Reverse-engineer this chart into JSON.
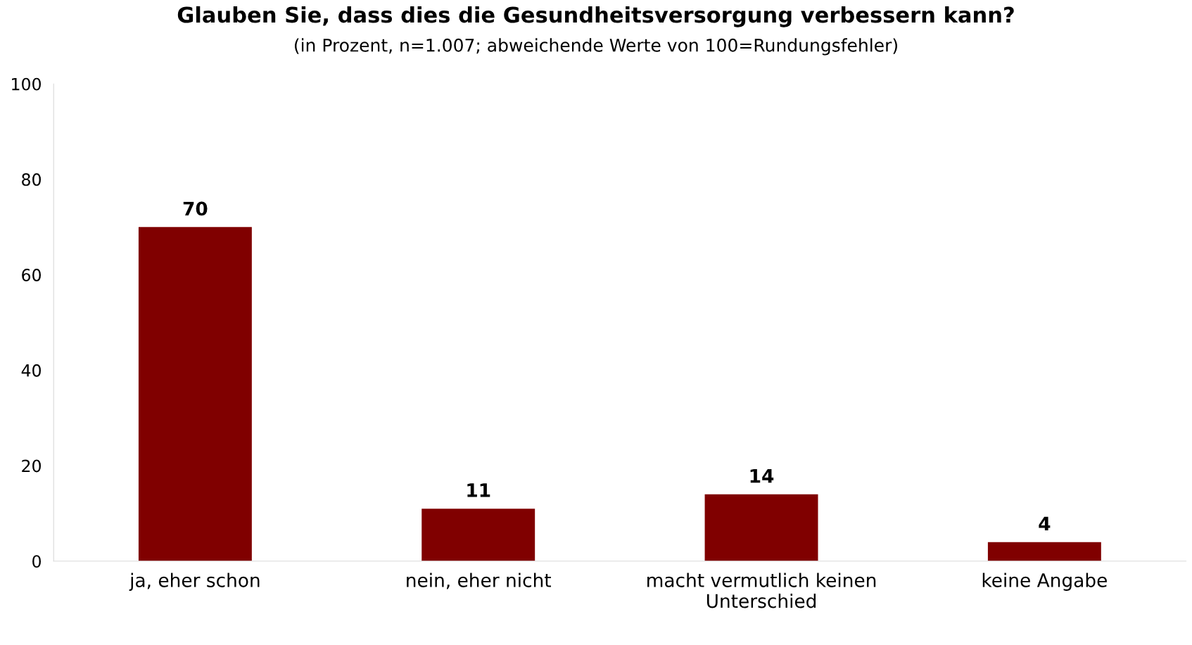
{
  "chart_data": {
    "type": "bar",
    "title": "Glauben Sie, dass dies die Gesundheitsversorgung verbessern kann?",
    "subtitle": "(in Prozent, n=1.007; abweichende Werte von 100=Rundungsfehler)",
    "categories": [
      "ja, eher schon",
      "nein, eher nicht",
      "macht vermutlich keinen\nUnterschied",
      "keine Angabe"
    ],
    "values": [
      70,
      11,
      14,
      4
    ],
    "color": "#800000",
    "ylim": [
      0,
      100
    ],
    "yticks": [
      0,
      20,
      40,
      60,
      80,
      100
    ],
    "grid": false,
    "data_labels": true
  }
}
